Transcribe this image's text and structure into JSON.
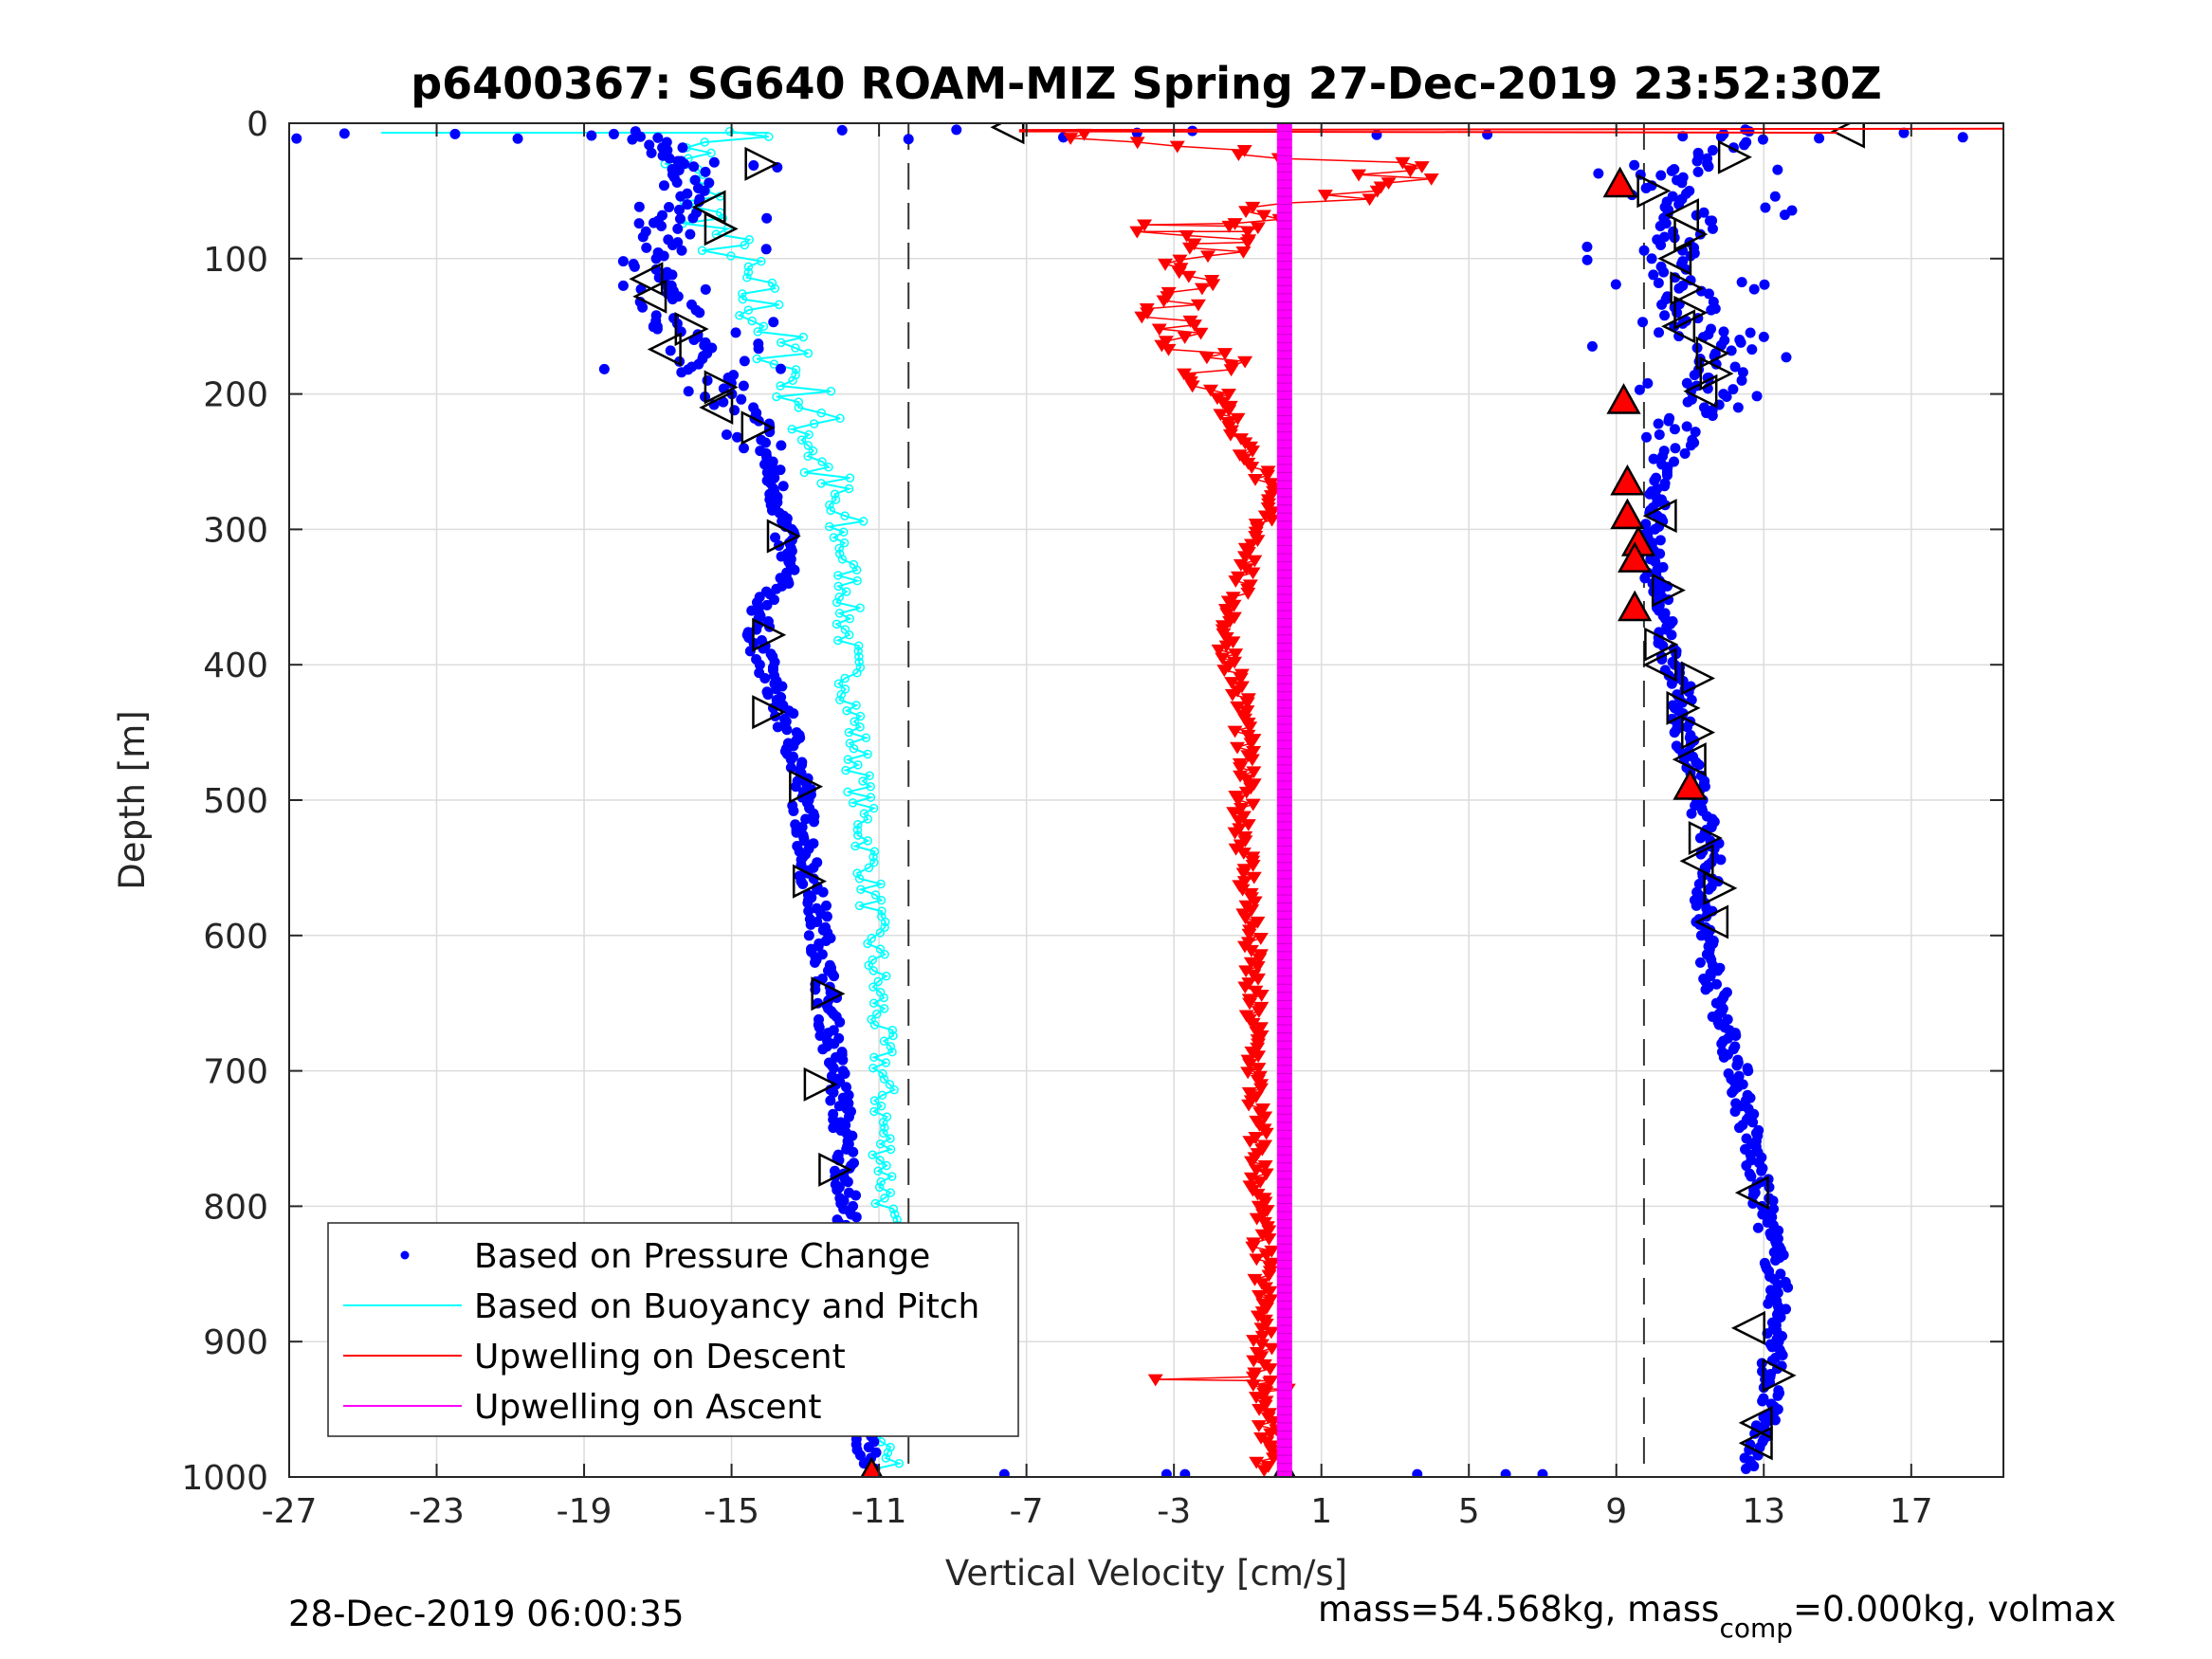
{
  "chart_data": {
    "type": "scatter",
    "title": "p6400367: SG640 ROAM-MIZ Spring 27-Dec-2019 23:52:30Z",
    "xlabel": "Vertical Velocity [cm/s]",
    "ylabel": "Depth [m]",
    "xlim": [
      -27,
      19.5
    ],
    "ylim": [
      0,
      1000
    ],
    "y_reversed": true,
    "grid": true,
    "x_ticks": [
      "-27",
      "-23",
      "-19",
      "-15",
      "-11",
      "-7",
      "-3",
      "1",
      "5",
      "9",
      "13",
      "17"
    ],
    "y_ticks": [
      "0",
      "100",
      "200",
      "300",
      "400",
      "500",
      "600",
      "700",
      "800",
      "900",
      "1000"
    ],
    "x_tick_values": [
      -27,
      -23,
      -19,
      -15,
      -11,
      -7,
      -3,
      1,
      5,
      9,
      13,
      17
    ],
    "y_tick_values": [
      0,
      100,
      200,
      300,
      400,
      500,
      600,
      700,
      800,
      900,
      1000
    ],
    "reference_lines_x": [
      -10.2,
      9.75
    ],
    "legend_location": "bottom-left",
    "legend": [
      {
        "label": "Based on Pressure Change",
        "color": "#0000ff",
        "style": "dot"
      },
      {
        "label": "Based on Buoyancy and Pitch",
        "color": "#00ffff",
        "style": "line"
      },
      {
        "label": "Upwelling on Descent",
        "color": "#ff0000",
        "style": "line"
      },
      {
        "label": "Upwelling on Ascent",
        "color": "#ff00ff",
        "style": "line"
      }
    ],
    "series": [
      {
        "name": "Based on Pressure Change",
        "color": "#0000ff",
        "descent": {
          "depth": [
            5,
            20,
            40,
            60,
            80,
            100,
            120,
            140,
            160,
            180,
            200,
            220,
            250,
            280,
            300,
            330,
            360,
            380,
            400,
            430,
            460,
            490,
            520,
            550,
            580,
            620,
            650,
            680,
            710,
            740,
            770,
            800,
            830,
            860,
            890,
            920,
            950,
            980,
            995
          ],
          "velocity": [
            -17.5,
            -17.0,
            -16.3,
            -16.5,
            -16.8,
            -17.2,
            -17.3,
            -16.6,
            -16.2,
            -15.6,
            -15.4,
            -14.6,
            -14.0,
            -13.7,
            -13.6,
            -13.5,
            -14.2,
            -14.3,
            -14.1,
            -13.7,
            -13.3,
            -13.1,
            -13.0,
            -12.9,
            -12.7,
            -12.5,
            -12.4,
            -12.3,
            -12.1,
            -12.0,
            -11.9,
            -11.9,
            -11.7,
            -11.6,
            -11.6,
            -11.6,
            -11.5,
            -11.3,
            -11.3
          ]
        },
        "ascent": {
          "depth": [
            995,
            970,
            950,
            930,
            900,
            870,
            840,
            810,
            790,
            760,
            730,
            700,
            670,
            640,
            610,
            590,
            560,
            530,
            500,
            470,
            440,
            410,
            380,
            350,
            320,
            300,
            270,
            240,
            220,
            200,
            180,
            160,
            140,
            120,
            100,
            80,
            60,
            40,
            20,
            5
          ],
          "velocity": [
            12.7,
            12.9,
            13.1,
            13.2,
            13.3,
            13.4,
            13.3,
            13.1,
            12.9,
            12.7,
            12.5,
            12.3,
            12.0,
            11.7,
            11.5,
            11.3,
            11.5,
            11.6,
            11.2,
            11.0,
            10.8,
            10.7,
            10.3,
            10.2,
            9.9,
            10.0,
            10.2,
            10.5,
            10.7,
            11.5,
            12.0,
            11.6,
            11.0,
            10.8,
            10.6,
            11.0,
            10.8,
            10.2,
            11.5,
            13.0
          ]
        }
      },
      {
        "name": "Based on Buoyancy and Pitch",
        "color": "#00ffff",
        "depth": [
          5,
          15,
          30,
          45,
          60,
          80,
          100,
          120,
          140,
          160,
          180,
          200,
          220,
          250,
          280,
          310,
          340,
          370,
          400,
          430,
          460,
          500,
          540,
          580,
          620,
          660,
          700,
          740,
          780,
          820,
          860,
          900,
          940,
          980,
          995
        ],
        "velocity": [
          -14.0,
          -15.5,
          -16.5,
          -16.0,
          -15.8,
          -15.4,
          -15.0,
          -14.6,
          -14.2,
          -13.8,
          -13.4,
          -13.0,
          -12.8,
          -12.6,
          -12.4,
          -12.0,
          -11.8,
          -11.9,
          -11.8,
          -11.7,
          -11.6,
          -11.5,
          -11.3,
          -11.2,
          -11.1,
          -11.0,
          -10.9,
          -10.9,
          -10.8,
          -10.8,
          -10.7,
          -10.7,
          -10.7,
          -10.8,
          -10.8
        ]
      },
      {
        "name": "Upwelling on Descent",
        "color": "#ff0000",
        "depth": [
          5,
          15,
          30,
          45,
          60,
          80,
          100,
          120,
          140,
          160,
          180,
          200,
          230,
          260,
          290,
          320,
          350,
          380,
          410,
          440,
          480,
          520,
          560,
          600,
          640,
          680,
          720,
          760,
          800,
          840,
          880,
          920,
          960,
          995
        ],
        "velocity": [
          -7.5,
          -4.0,
          2.5,
          3.0,
          0.5,
          -1.5,
          -2.0,
          -2.5,
          -2.8,
          -2.5,
          -2.0,
          -1.7,
          -1.3,
          -0.6,
          -0.5,
          -0.9,
          -1.3,
          -1.6,
          -1.3,
          -1.1,
          -1.1,
          -1.1,
          -1.0,
          -0.9,
          -0.9,
          -0.8,
          -0.8,
          -0.7,
          -0.7,
          -0.6,
          -0.6,
          -0.6,
          -0.5,
          -0.5
        ]
      },
      {
        "name": "Upwelling on Ascent",
        "color": "#ff00ff",
        "depth": [
          0,
          1000
        ],
        "velocity": [
          0.0,
          0.0
        ]
      }
    ]
  },
  "footer": {
    "timestamp": "28-Dec-2019 06:00:35",
    "mass_text_1": "mass=54.568kg, mass",
    "mass_sub": "comp",
    "mass_text_2": "=0.000kg, volmax"
  }
}
